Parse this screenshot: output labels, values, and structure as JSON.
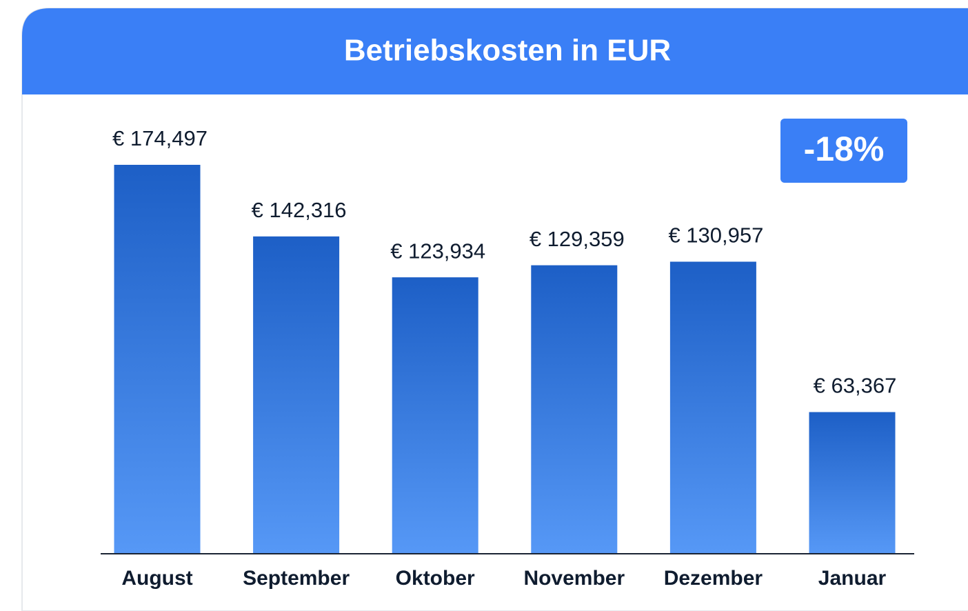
{
  "chart_data": {
    "type": "bar",
    "title": "Betriebskosten in EUR",
    "annotation": "-18%",
    "categories": [
      "August",
      "September",
      "Oktober",
      "November",
      "Dezember",
      "Januar"
    ],
    "values": [
      174497,
      142316,
      123934,
      129359,
      130957,
      63367
    ],
    "value_labels": [
      "€ 174,497",
      "€ 142,316",
      "€ 123,934",
      "€ 129,359",
      "€ 130,957",
      "€ 63,367"
    ],
    "color_top": "#1d5fc6",
    "color_bottom": "#5698f6"
  }
}
